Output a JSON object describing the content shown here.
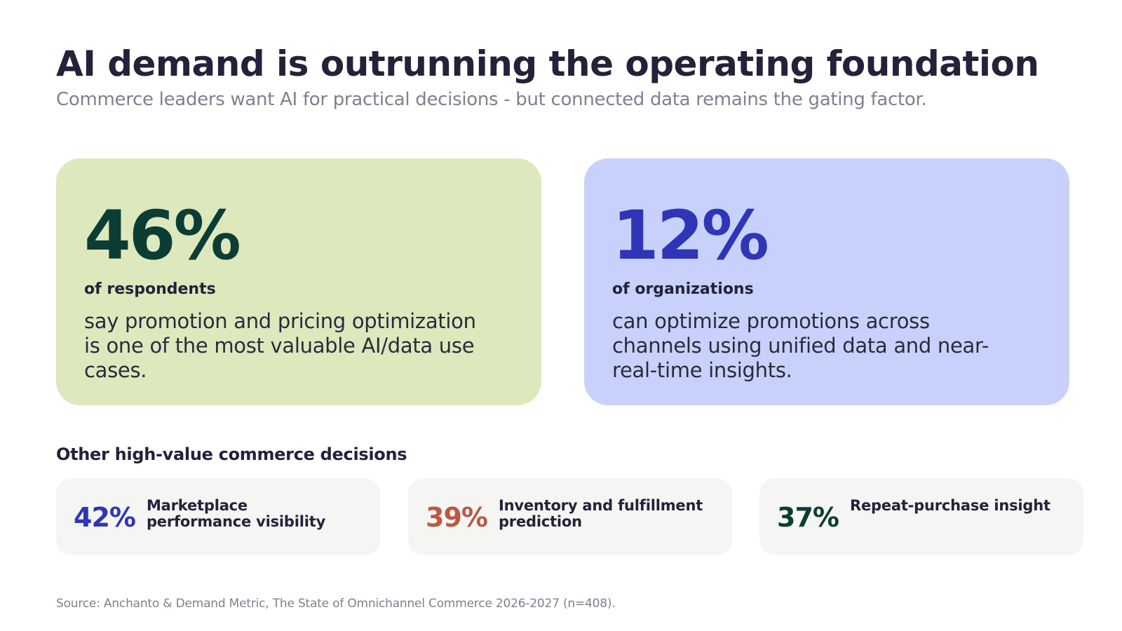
{
  "header": {
    "title": "AI demand is outrunning the operating foundation",
    "subtitle": "Commerce leaders want AI for practical decisions - but connected data remains the gating factor."
  },
  "highlights": [
    {
      "value": "46%",
      "label": "of respondents",
      "description": "say promotion and pricing optimization is one of the most valuable AI/data use cases.",
      "background": "#dde8bd",
      "value_color": "#0b3d34"
    },
    {
      "value": "12%",
      "label": "of organizations",
      "description": "can optimize promotions across channels using unified data and near-real-time insights.",
      "background": "#c8d1fc",
      "value_color": "#2f35b6"
    }
  ],
  "other": {
    "heading": "Other high-value commerce decisions",
    "items": [
      {
        "value": "42%",
        "label": "Marketplace performance visibility",
        "value_color": "#2f35b6"
      },
      {
        "value": "39%",
        "label": "Inventory and fulfillment prediction",
        "value_color": "#b85a44"
      },
      {
        "value": "37%",
        "label": "Repeat-purchase insight",
        "value_color": "#0b3d34"
      }
    ]
  },
  "footer": {
    "source": "Source: Anchanto & Demand Metric, The State of Omnichannel Commerce 2026-2027 (n=408)."
  }
}
